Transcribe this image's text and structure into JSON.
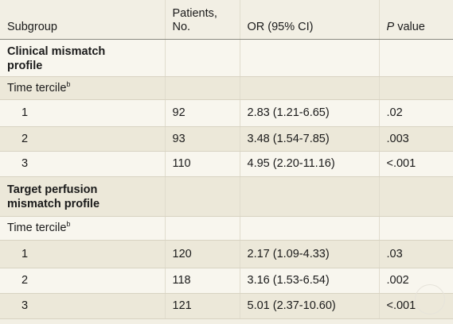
{
  "header": {
    "subgroup": "Subgroup",
    "patients_line1": "Patients,",
    "patients_line2": "No.",
    "or": "OR (95% CI)",
    "p_italic": "P",
    "p_rest": " value"
  },
  "clinical": {
    "title_line1": "Clinical mismatch",
    "title_line2": "profile",
    "tercile_label": "Time tercile",
    "tercile_sup": "b",
    "rows": [
      {
        "tercile": "1",
        "patients": "92",
        "or": "2.83 (1.21-6.65)",
        "p": ".02"
      },
      {
        "tercile": "2",
        "patients": "93",
        "or": "3.48 (1.54-7.85)",
        "p": ".003"
      },
      {
        "tercile": "3",
        "patients": "110",
        "or": "4.95 (2.20-11.16)",
        "p": "<.001"
      }
    ]
  },
  "target": {
    "title_line1": "Target perfusion",
    "title_line2": "mismatch profile",
    "tercile_label": "Time tercile",
    "tercile_sup": "b",
    "rows": [
      {
        "tercile": "1",
        "patients": "120",
        "or": "2.17 (1.09-4.33)",
        "p": ".03"
      },
      {
        "tercile": "2",
        "patients": "118",
        "or": "3.16 (1.53-6.54)",
        "p": ".002"
      },
      {
        "tercile": "3",
        "patients": "121",
        "or": "5.01 (2.37-10.60)",
        "p": "<.001"
      }
    ]
  }
}
